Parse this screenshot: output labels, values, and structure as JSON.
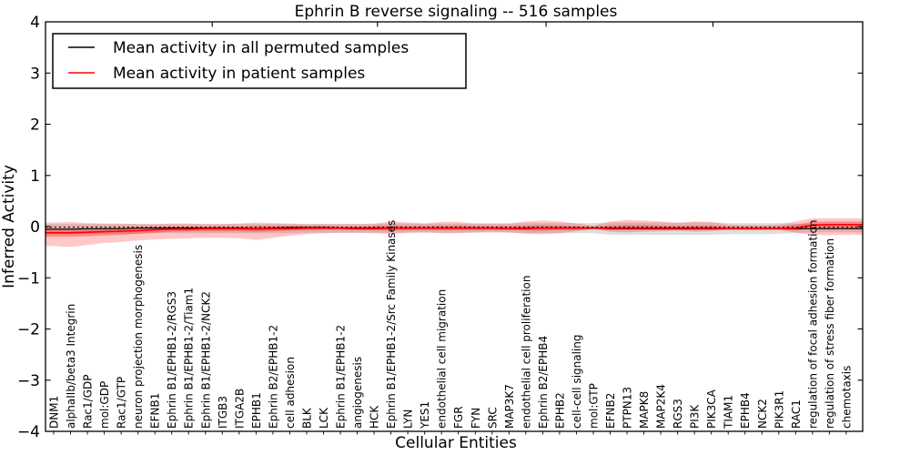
{
  "chart_data": {
    "type": "line",
    "title": "Ephrin B reverse signaling -- 516 samples",
    "xlabel": "Cellular Entities",
    "ylabel": "Inferred Activity",
    "ylim": [
      -4,
      4
    ],
    "grid": false,
    "y_ticks": [
      {
        "label": "4",
        "value": 4
      },
      {
        "label": "3",
        "value": 3
      },
      {
        "label": "2",
        "value": 2
      },
      {
        "label": "1",
        "value": 1
      },
      {
        "label": "0",
        "value": 0
      },
      {
        "label": "−1",
        "value": -1
      },
      {
        "label": "−2",
        "value": -2
      },
      {
        "label": "−3",
        "value": -3
      },
      {
        "label": "−4",
        "value": -4
      }
    ],
    "top_tick_indices": [
      9.4,
      19.2,
      29.2,
      39.1
    ],
    "legend": {
      "position": "upper left",
      "items": [
        {
          "label": "Mean activity in all permuted samples",
          "color": "#000000"
        },
        {
          "label": "Mean activity in patient samples",
          "color": "#ff0000"
        }
      ]
    },
    "categories": [
      "DNM1",
      "alphaIIb/beta3 Integrin",
      "Rac1/GDP",
      "mol:GDP",
      "Rac1/GTP",
      "neuron projection morphogenesis",
      "EFNB1",
      "Ephrin B1/EPHB1-2/RGS3",
      "Ephrin B1/EPHB1-2/Tiam1",
      "Ephrin B1/EPHB1-2/NCK2",
      "ITGB3",
      "ITGA2B",
      "EPHB1",
      "Ephrin B2/EPHB1-2",
      "cell adhesion",
      "BLK",
      "LCK",
      "Ephrin B1/EPHB1-2",
      "angiogenesis",
      "HCK",
      "Ephrin B1/EPHB1-2/Src Family Kinases",
      "LYN",
      "YES1",
      "endothelial cell migration",
      "FGR",
      "FYN",
      "SRC",
      "MAP3K7",
      "endothelial cell proliferation",
      "Ephrin B2/EPHB4",
      "EPHB2",
      "cell-cell signaling",
      "mol:GTP",
      "EFNB2",
      "PTPN13",
      "MAPK8",
      "MAP2K4",
      "RGS3",
      "PI3K",
      "PIK3CA",
      "TIAM1",
      "EPHB4",
      "NCK2",
      "PIK3R1",
      "RAC1",
      "regulation of focal adhesion formation",
      "regulation of stress fiber formation",
      "chemotaxis"
    ],
    "series": [
      {
        "name": "Mean activity in all permuted samples",
        "color": "#000000",
        "style": "solid",
        "width": 1.2,
        "values": [
          -0.05,
          -0.05,
          -0.04,
          -0.04,
          -0.04,
          -0.03,
          -0.03,
          -0.03,
          -0.03,
          -0.03,
          -0.03,
          -0.03,
          -0.04,
          -0.03,
          -0.02,
          -0.02,
          -0.02,
          -0.03,
          -0.03,
          -0.03,
          -0.03,
          -0.03,
          -0.03,
          -0.03,
          -0.03,
          -0.03,
          -0.03,
          -0.04,
          -0.04,
          -0.03,
          -0.03,
          -0.03,
          -0.03,
          -0.04,
          -0.04,
          -0.04,
          -0.04,
          -0.04,
          -0.04,
          -0.04,
          -0.04,
          -0.04,
          -0.04,
          -0.04,
          -0.04,
          -0.04,
          -0.04,
          -0.04
        ]
      },
      {
        "name": "Mean activity in patient samples",
        "color": "#ff0000",
        "style": "solid",
        "width": 1.6,
        "values": [
          -0.12,
          -0.12,
          -0.11,
          -0.1,
          -0.09,
          -0.08,
          -0.06,
          -0.05,
          -0.05,
          -0.04,
          -0.04,
          -0.04,
          -0.05,
          -0.04,
          -0.04,
          -0.03,
          -0.03,
          -0.03,
          -0.04,
          -0.04,
          -0.03,
          -0.03,
          -0.03,
          -0.03,
          -0.03,
          -0.03,
          -0.03,
          -0.04,
          -0.03,
          -0.03,
          -0.03,
          -0.03,
          -0.03,
          -0.03,
          -0.03,
          -0.03,
          -0.03,
          -0.03,
          -0.03,
          -0.03,
          -0.04,
          -0.04,
          -0.04,
          -0.04,
          -0.03,
          0.03,
          0.04,
          0.04
        ]
      },
      {
        "name": "baseline (dotted)",
        "color": "#000000",
        "style": "dotted",
        "width": 1.3,
        "values": [
          -0.01,
          -0.01,
          -0.01,
          -0.01,
          -0.01,
          -0.01,
          -0.01,
          -0.01,
          -0.01,
          -0.01,
          -0.01,
          -0.01,
          -0.01,
          -0.01,
          -0.01,
          -0.01,
          -0.01,
          -0.01,
          -0.01,
          -0.01,
          -0.01,
          -0.01,
          -0.01,
          -0.01,
          -0.01,
          -0.01,
          -0.01,
          -0.01,
          -0.01,
          -0.01,
          -0.01,
          -0.01,
          -0.01,
          -0.01,
          -0.01,
          -0.01,
          -0.01,
          -0.01,
          -0.01,
          -0.01,
          -0.01,
          -0.01,
          -0.01,
          -0.01,
          -0.01,
          -0.01,
          -0.01,
          -0.01
        ]
      }
    ],
    "bands": [
      {
        "name": "permuted-range",
        "color": "#000000",
        "opacity": 0.13,
        "upper": [
          0.05,
          0.05,
          0.05,
          0.05,
          0.05,
          0.05,
          0.05,
          0.05,
          0.05,
          0.05,
          0.05,
          0.05,
          0.05,
          0.05,
          0.05,
          0.05,
          0.05,
          0.05,
          0.05,
          0.05,
          0.06,
          0.06,
          0.06,
          0.06,
          0.06,
          0.06,
          0.06,
          0.06,
          0.07,
          0.07,
          0.07,
          0.07,
          0.07,
          0.08,
          0.08,
          0.08,
          0.08,
          0.08,
          0.08,
          0.08,
          0.07,
          0.07,
          0.07,
          0.07,
          0.06,
          0.05,
          0.05,
          0.05
        ],
        "lower": [
          -0.15,
          -0.15,
          -0.14,
          -0.14,
          -0.14,
          -0.14,
          -0.13,
          -0.13,
          -0.13,
          -0.13,
          -0.13,
          -0.13,
          -0.13,
          -0.13,
          -0.13,
          -0.12,
          -0.12,
          -0.12,
          -0.12,
          -0.12,
          -0.12,
          -0.12,
          -0.12,
          -0.12,
          -0.12,
          -0.12,
          -0.12,
          -0.12,
          -0.13,
          -0.13,
          -0.13,
          -0.13,
          -0.13,
          -0.16,
          -0.16,
          -0.16,
          -0.16,
          -0.16,
          -0.16,
          -0.16,
          -0.15,
          -0.15,
          -0.15,
          -0.14,
          -0.13,
          -0.11,
          -0.11,
          -0.11
        ]
      },
      {
        "name": "patient-range-outer",
        "color": "#ff0000",
        "opacity": 0.22,
        "upper": [
          0.08,
          0.09,
          0.07,
          0.06,
          0.06,
          0.05,
          0.05,
          0.06,
          0.06,
          0.05,
          0.05,
          0.06,
          0.08,
          0.07,
          0.06,
          0.05,
          0.05,
          0.05,
          0.05,
          0.06,
          0.1,
          0.08,
          0.06,
          0.09,
          0.09,
          0.06,
          0.06,
          0.06,
          0.1,
          0.12,
          0.1,
          0.06,
          0.02,
          0.1,
          0.13,
          0.12,
          0.1,
          0.07,
          0.1,
          0.09,
          0.04,
          0.03,
          0.03,
          0.04,
          0.1,
          0.16,
          0.16,
          0.16
        ],
        "lower": [
          -0.38,
          -0.4,
          -0.36,
          -0.32,
          -0.3,
          -0.27,
          -0.25,
          -0.24,
          -0.23,
          -0.22,
          -0.22,
          -0.23,
          -0.26,
          -0.22,
          -0.18,
          -0.15,
          -0.13,
          -0.12,
          -0.12,
          -0.13,
          -0.15,
          -0.12,
          -0.11,
          -0.13,
          -0.13,
          -0.11,
          -0.1,
          -0.11,
          -0.14,
          -0.15,
          -0.13,
          -0.09,
          -0.05,
          -0.1,
          -0.11,
          -0.1,
          -0.09,
          -0.08,
          -0.1,
          -0.09,
          -0.06,
          -0.06,
          -0.06,
          -0.06,
          -0.12,
          -0.16,
          -0.17,
          -0.16
        ]
      },
      {
        "name": "patient-range-inner",
        "color": "#ff0000",
        "opacity": 0.3,
        "upper": [
          -0.04,
          -0.04,
          -0.04,
          -0.03,
          -0.03,
          -0.02,
          -0.01,
          0.0,
          0.0,
          0.0,
          0.0,
          0.0,
          0.01,
          0.01,
          0.01,
          0.01,
          0.01,
          0.0,
          0.0,
          0.01,
          0.02,
          0.01,
          0.01,
          0.02,
          0.02,
          0.01,
          0.01,
          0.01,
          0.02,
          0.03,
          0.02,
          0.01,
          0.0,
          0.02,
          0.03,
          0.03,
          0.02,
          0.01,
          0.02,
          0.02,
          0.0,
          0.0,
          0.0,
          0.0,
          0.04,
          0.09,
          0.1,
          0.1
        ],
        "lower": [
          -0.2,
          -0.2,
          -0.19,
          -0.17,
          -0.16,
          -0.14,
          -0.12,
          -0.1,
          -0.09,
          -0.09,
          -0.09,
          -0.09,
          -0.1,
          -0.09,
          -0.08,
          -0.07,
          -0.06,
          -0.06,
          -0.07,
          -0.07,
          -0.08,
          -0.07,
          -0.07,
          -0.07,
          -0.07,
          -0.07,
          -0.07,
          -0.07,
          -0.08,
          -0.08,
          -0.07,
          -0.07,
          -0.05,
          -0.07,
          -0.07,
          -0.07,
          -0.07,
          -0.07,
          -0.07,
          -0.07,
          -0.06,
          -0.06,
          -0.06,
          -0.06,
          -0.08,
          -0.03,
          -0.03,
          -0.03
        ]
      }
    ]
  }
}
